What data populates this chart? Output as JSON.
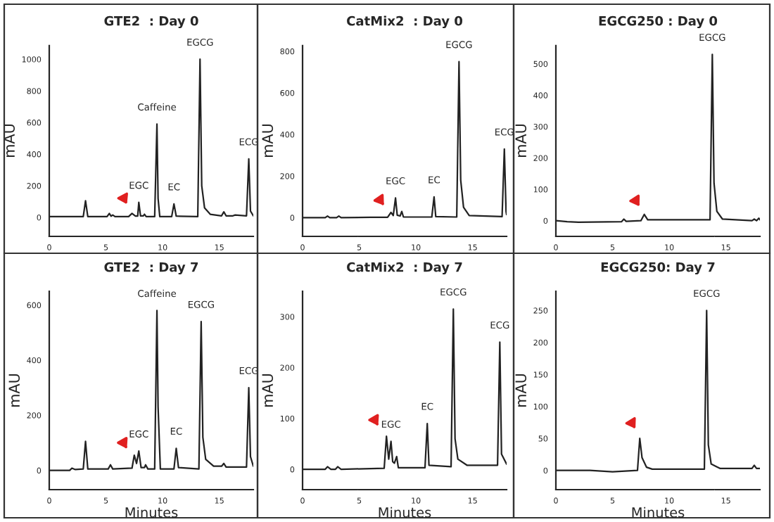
{
  "chart_data": [
    {
      "type": "line",
      "title": "GTE2  : Day 0",
      "ylabel": "mAU",
      "xlim": [
        0,
        18
      ],
      "xticks": [
        0,
        5,
        10,
        15
      ],
      "ylim": [
        -120,
        1090
      ],
      "yticks": [
        0,
        200,
        400,
        600,
        800,
        1000
      ],
      "grid": false,
      "marker": "none",
      "line_style": "solid",
      "series": [
        {
          "color": "#222222",
          "x": [
            0,
            2,
            3.0,
            3.2,
            3.4,
            5.1,
            5.3,
            5.45,
            5.6,
            5.8,
            7.0,
            7.3,
            7.6,
            7.8,
            7.9,
            8.05,
            8.3,
            8.4,
            8.55,
            9.3,
            9.5,
            9.6,
            9.75,
            10.8,
            11.0,
            11.2,
            13.1,
            13.3,
            13.45,
            13.7,
            14.2,
            15.2,
            15.4,
            15.6,
            16.2,
            16.4,
            17.4,
            17.6,
            17.75,
            18.0
          ],
          "values": [
            5,
            5,
            5,
            105,
            5,
            5,
            25,
            8,
            15,
            5,
            5,
            25,
            8,
            8,
            95,
            10,
            10,
            20,
            5,
            5,
            590,
            120,
            5,
            5,
            85,
            8,
            5,
            1000,
            200,
            60,
            20,
            10,
            35,
            10,
            10,
            15,
            10,
            370,
            40,
            10
          ]
        }
      ],
      "annotations": [
        {
          "text": "EGC",
          "x": 7.9,
          "y": 95
        },
        {
          "text": "Caffeine",
          "x": 9.5,
          "y": 590
        },
        {
          "text": "EC",
          "x": 11.0,
          "y": 85
        },
        {
          "text": "EGCG",
          "x": 13.3,
          "y": 1000
        },
        {
          "text": "ECG",
          "x": 17.6,
          "y": 370
        }
      ]
    },
    {
      "type": "line",
      "title": "CatMix2  : Day 0",
      "ylabel": "mAU",
      "xlim": [
        0,
        18
      ],
      "xticks": [
        0,
        5,
        10,
        15
      ],
      "ylim": [
        -90,
        830
      ],
      "yticks": [
        0,
        200,
        400,
        600,
        800
      ],
      "grid": false,
      "marker": "none",
      "line_style": "solid",
      "series": [
        {
          "color": "#222222",
          "x": [
            0,
            2,
            2.2,
            2.4,
            3,
            3.2,
            3.4,
            6,
            7.5,
            7.8,
            8.0,
            8.2,
            8.35,
            8.6,
            8.75,
            8.9,
            11.4,
            11.6,
            11.75,
            13.6,
            13.8,
            13.95,
            14.2,
            14.7,
            17.6,
            17.8,
            17.95,
            18.0
          ],
          "values": [
            0,
            0,
            8,
            0,
            0,
            8,
            0,
            2,
            2,
            25,
            10,
            95,
            12,
            8,
            30,
            3,
            3,
            100,
            5,
            3,
            750,
            180,
            50,
            10,
            5,
            330,
            30,
            15
          ]
        }
      ],
      "annotations": [
        {
          "text": "EGC",
          "x": 8.2,
          "y": 95
        },
        {
          "text": "EC",
          "x": 11.6,
          "y": 100
        },
        {
          "text": "EGCG",
          "x": 13.8,
          "y": 750
        },
        {
          "text": "ECG",
          "x": 17.8,
          "y": 330
        }
      ]
    },
    {
      "type": "line",
      "title": "EGCG250 : Day 0",
      "ylabel": "mAU",
      "xlim": [
        0,
        18
      ],
      "xticks": [
        0,
        5,
        10,
        15
      ],
      "ylim": [
        -50,
        560
      ],
      "yticks": [
        0,
        100,
        200,
        300,
        400,
        500
      ],
      "grid": false,
      "marker": "none",
      "line_style": "solid",
      "series": [
        {
          "color": "#222222",
          "x": [
            0,
            1,
            2,
            5.8,
            6.0,
            6.2,
            7.5,
            7.8,
            8.1,
            13.6,
            13.8,
            13.95,
            14.2,
            14.7,
            17.3,
            17.5,
            17.7,
            17.9,
            18.0
          ],
          "values": [
            0,
            -3,
            -5,
            -3,
            5,
            -2,
            0,
            20,
            3,
            3,
            530,
            120,
            30,
            5,
            0,
            5,
            0,
            8,
            3
          ]
        }
      ],
      "annotations": [
        {
          "text": "EGCG",
          "x": 13.8,
          "y": 530
        }
      ]
    },
    {
      "type": "line",
      "title": "GTE2  : Day 7",
      "ylabel": "mAU",
      "xlabel": "Minutes",
      "xlim": [
        0,
        18
      ],
      "xticks": [
        0,
        5,
        10,
        15
      ],
      "ylim": [
        -70,
        650
      ],
      "yticks": [
        0,
        200,
        400,
        600
      ],
      "grid": false,
      "marker": "none",
      "line_style": "solid",
      "series": [
        {
          "color": "#222222",
          "x": [
            0,
            1.8,
            2,
            2.3,
            3.0,
            3.2,
            3.4,
            5.2,
            5.4,
            5.6,
            7.3,
            7.5,
            7.7,
            7.9,
            8.1,
            8.4,
            8.5,
            8.7,
            9.3,
            9.5,
            9.6,
            9.8,
            11.0,
            11.2,
            11.4,
            13.2,
            13.4,
            13.55,
            13.8,
            14.5,
            15.2,
            15.4,
            15.6,
            17.4,
            17.6,
            17.75,
            18.0
          ],
          "values": [
            0,
            0,
            8,
            3,
            5,
            105,
            5,
            5,
            20,
            5,
            8,
            55,
            25,
            70,
            10,
            10,
            20,
            5,
            5,
            580,
            230,
            5,
            5,
            80,
            10,
            5,
            540,
            120,
            40,
            15,
            15,
            25,
            12,
            12,
            300,
            50,
            15
          ]
        }
      ],
      "annotations": [
        {
          "text": "EGC",
          "x": 7.9,
          "y": 70
        },
        {
          "text": "Caffeine",
          "x": 9.5,
          "y": 580
        },
        {
          "text": "EC",
          "x": 11.2,
          "y": 80
        },
        {
          "text": "EGCG",
          "x": 13.4,
          "y": 540
        },
        {
          "text": "ECG",
          "x": 17.6,
          "y": 300
        }
      ]
    },
    {
      "type": "line",
      "title": "CatMix2  : Day 7",
      "ylabel": "mAU",
      "xlabel": "Minutes",
      "xlim": [
        0,
        18
      ],
      "xticks": [
        0,
        5,
        10,
        15
      ],
      "ylim": [
        -40,
        350
      ],
      "yticks": [
        0,
        100,
        200,
        300
      ],
      "grid": false,
      "marker": "none",
      "line_style": "solid",
      "series": [
        {
          "color": "#222222",
          "x": [
            0,
            2,
            2.2,
            2.5,
            2.9,
            3.1,
            3.4,
            7.2,
            7.4,
            7.6,
            7.8,
            7.95,
            8.1,
            8.3,
            8.45,
            8.7,
            10.8,
            11.0,
            11.15,
            13.1,
            13.3,
            13.45,
            13.7,
            14.5,
            17.2,
            17.4,
            17.55,
            18.0
          ],
          "values": [
            0,
            0,
            5,
            0,
            0,
            5,
            0,
            2,
            65,
            20,
            55,
            15,
            12,
            25,
            3,
            3,
            3,
            90,
            8,
            5,
            315,
            60,
            20,
            8,
            8,
            250,
            30,
            10
          ]
        }
      ],
      "annotations": [
        {
          "text": "EGC",
          "x": 7.8,
          "y": 55
        },
        {
          "text": "EC",
          "x": 11.0,
          "y": 90
        },
        {
          "text": "EGCG",
          "x": 13.3,
          "y": 315
        },
        {
          "text": "ECG",
          "x": 17.4,
          "y": 250
        }
      ]
    },
    {
      "type": "line",
      "title": "EGCG250: Day 7",
      "ylabel": "mAU",
      "xlabel": "Minutes",
      "xlim": [
        0,
        18
      ],
      "xticks": [
        0,
        5,
        10,
        15
      ],
      "ylim": [
        -30,
        280
      ],
      "yticks": [
        0,
        50,
        100,
        150,
        200,
        250
      ],
      "grid": false,
      "marker": "none",
      "line_style": "solid",
      "series": [
        {
          "color": "#222222",
          "x": [
            0,
            3,
            5,
            7.2,
            7.4,
            7.6,
            8.0,
            8.5,
            13.1,
            13.3,
            13.45,
            13.7,
            14.5,
            17.3,
            17.5,
            17.7,
            18.0
          ],
          "values": [
            0,
            0,
            -2,
            0,
            50,
            20,
            5,
            2,
            2,
            250,
            40,
            10,
            3,
            3,
            8,
            3,
            3
          ]
        }
      ],
      "annotations": [
        {
          "text": "EGCG",
          "x": 13.3,
          "y": 250
        }
      ]
    }
  ]
}
